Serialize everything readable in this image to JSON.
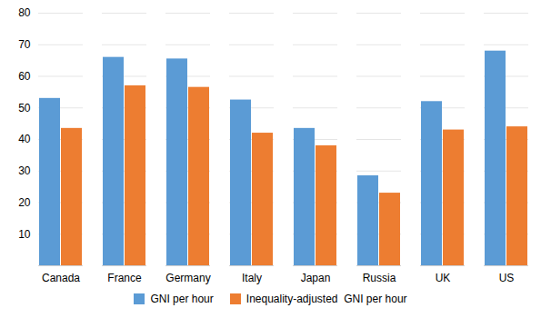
{
  "chart_data": {
    "type": "bar",
    "categories": [
      "Canada",
      "France",
      "Germany",
      "Italy",
      "Japan",
      "Russia",
      "UK",
      "US"
    ],
    "series": [
      {
        "name": "GNI per hour",
        "color": "#5B9BD5",
        "values": [
          53,
          66,
          65.5,
          52.5,
          43.5,
          28.5,
          52,
          68
        ]
      },
      {
        "name": "Inequality-adjusted  GNI per hour",
        "color": "#ED7D31",
        "values": [
          43.5,
          57,
          56.5,
          42,
          38,
          23,
          43,
          44
        ]
      }
    ],
    "ylim": [
      0,
      80
    ],
    "yticks": [
      {
        "value": 0,
        "label": ""
      },
      10,
      20,
      30,
      40,
      50,
      60,
      70,
      80
    ],
    "grid": true,
    "legend": "bottom"
  }
}
